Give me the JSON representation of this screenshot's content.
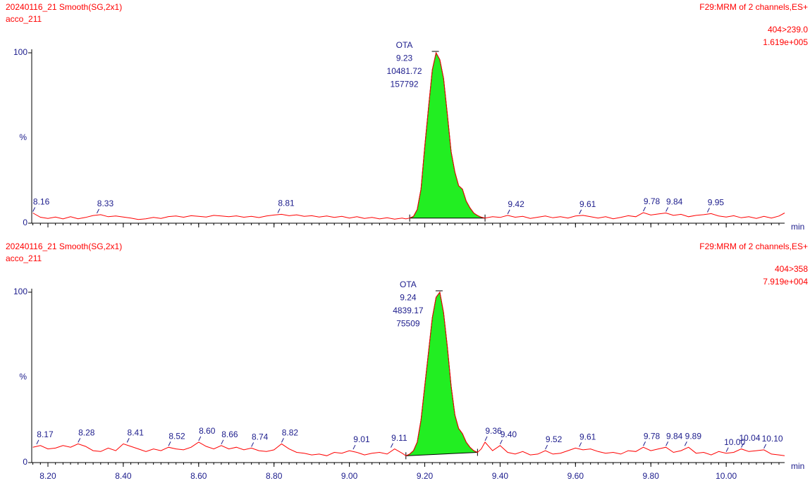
{
  "chart_data": [
    {
      "type": "line",
      "title": "20240116_21 Smooth(SG,2x1)",
      "subtitle": "acco_211",
      "function": "F29:MRM of 2 channels,ES+",
      "channel": "404>239.0",
      "intensity": "1.619e+005",
      "x_label": "min",
      "y_label": "%",
      "color": "#ff0000",
      "fill_color": "#22ee22",
      "xlim": [
        8.157,
        10.155
      ],
      "ylim": [
        0,
        100
      ],
      "yticks": [
        0,
        100
      ],
      "xticks": [
        8.2,
        8.4,
        8.6,
        8.8,
        9.0,
        9.2,
        9.4,
        9.6,
        9.8,
        10.0
      ],
      "tick_labels": false,
      "x": [
        8.16,
        8.18,
        8.2,
        8.22,
        8.24,
        8.26,
        8.28,
        8.3,
        8.32,
        8.34,
        8.36,
        8.38,
        8.4,
        8.42,
        8.44,
        8.46,
        8.48,
        8.5,
        8.52,
        8.54,
        8.56,
        8.58,
        8.6,
        8.62,
        8.64,
        8.66,
        8.68,
        8.7,
        8.72,
        8.74,
        8.76,
        8.78,
        8.8,
        8.82,
        8.84,
        8.86,
        8.88,
        8.9,
        8.92,
        8.94,
        8.96,
        8.98,
        9.0,
        9.02,
        9.04,
        9.06,
        9.08,
        9.1,
        9.12,
        9.14,
        9.15,
        9.16,
        9.17,
        9.18,
        9.19,
        9.2,
        9.21,
        9.22,
        9.23,
        9.24,
        9.25,
        9.26,
        9.27,
        9.28,
        9.29,
        9.3,
        9.31,
        9.32,
        9.33,
        9.34,
        9.35,
        9.36,
        9.38,
        9.4,
        9.42,
        9.44,
        9.46,
        9.48,
        9.5,
        9.52,
        9.54,
        9.56,
        9.58,
        9.6,
        9.62,
        9.64,
        9.66,
        9.68,
        9.7,
        9.72,
        9.74,
        9.76,
        9.78,
        9.8,
        9.82,
        9.84,
        9.86,
        9.88,
        9.9,
        9.92,
        9.94,
        9.96,
        9.98,
        10.0,
        10.02,
        10.04,
        10.06,
        10.08,
        10.1,
        10.12,
        10.14,
        10.155
      ],
      "values": [
        6,
        3.5,
        2.8,
        3.6,
        2.5,
        3.8,
        2.6,
        3.4,
        4.5,
        5,
        3.8,
        4.2,
        3.6,
        3.0,
        2.2,
        2.6,
        3.4,
        2.8,
        3.9,
        4.2,
        3.5,
        4.4,
        4.0,
        3.6,
        4.6,
        4.2,
        3.8,
        4.3,
        3.5,
        4.0,
        3.3,
        4.2,
        4.8,
        5.2,
        4.4,
        4.9,
        4.0,
        4.4,
        3.6,
        4.2,
        3.4,
        4.0,
        3.0,
        3.8,
        2.8,
        3.4,
        2.5,
        3.2,
        2.4,
        3.0,
        2.5,
        3,
        4,
        8,
        20,
        45,
        68,
        90,
        100,
        96,
        85,
        64,
        42,
        30,
        22,
        20,
        13,
        9,
        6,
        4.5,
        3.5,
        3,
        3.8,
        3.4,
        4.6,
        3.5,
        4.0,
        2.8,
        3.5,
        4.2,
        3.2,
        3.8,
        3.0,
        4.2,
        4.6,
        3.8,
        3.0,
        3.8,
        2.6,
        3.4,
        4.4,
        3.8,
        6.2,
        4.8,
        5.4,
        6.0,
        4.6,
        5.2,
        3.8,
        4.6,
        5.0,
        5.6,
        4.2,
        3.6,
        4.4,
        3.2,
        3.8,
        2.8,
        4.0,
        3.0,
        4.2,
        6
      ],
      "integration": {
        "start": 9.16,
        "end": 9.36
      },
      "peak": {
        "name": "OTA",
        "rt": 9.23,
        "area": 10481.72,
        "height": 157792
      },
      "peak_labels": [
        8.16,
        8.33,
        8.81,
        9.42,
        9.61,
        9.78,
        9.84,
        9.95
      ]
    },
    {
      "type": "line",
      "title": "20240116_21 Smooth(SG,2x1)",
      "subtitle": "acco_211",
      "function": "F29:MRM of 2 channels,ES+",
      "channel": "404>358",
      "intensity": "7.919e+004",
      "x_label": "min",
      "y_label": "%",
      "color": "#ff0000",
      "fill_color": "#22ee22",
      "xlim": [
        8.157,
        10.155
      ],
      "ylim": [
        0,
        100
      ],
      "yticks": [
        0,
        100
      ],
      "xticks": [
        {
          "value": 8.2,
          "label": "8.20"
        },
        {
          "value": 8.4,
          "label": "8.40"
        },
        {
          "value": 8.6,
          "label": "8.60"
        },
        {
          "value": 8.8,
          "label": "8.80"
        },
        {
          "value": 9.0,
          "label": "9.00"
        },
        {
          "value": 9.2,
          "label": "9.20"
        },
        {
          "value": 9.4,
          "label": "9.40"
        },
        {
          "value": 9.6,
          "label": "9.60"
        },
        {
          "value": 9.8,
          "label": "9.80"
        },
        {
          "value": 10.0,
          "label": "10.00"
        }
      ],
      "tick_labels": true,
      "x": [
        8.16,
        8.18,
        8.2,
        8.22,
        8.24,
        8.26,
        8.28,
        8.3,
        8.32,
        8.34,
        8.36,
        8.38,
        8.4,
        8.42,
        8.44,
        8.46,
        8.48,
        8.5,
        8.52,
        8.54,
        8.56,
        8.58,
        8.6,
        8.62,
        8.64,
        8.66,
        8.68,
        8.7,
        8.72,
        8.74,
        8.76,
        8.78,
        8.8,
        8.82,
        8.84,
        8.86,
        8.88,
        8.9,
        8.92,
        8.94,
        8.96,
        8.98,
        9.0,
        9.02,
        9.04,
        9.06,
        9.08,
        9.1,
        9.12,
        9.14,
        9.15,
        9.16,
        9.17,
        9.18,
        9.19,
        9.2,
        9.21,
        9.22,
        9.23,
        9.24,
        9.25,
        9.26,
        9.27,
        9.28,
        9.29,
        9.3,
        9.31,
        9.32,
        9.33,
        9.34,
        9.35,
        9.36,
        9.38,
        9.4,
        9.42,
        9.44,
        9.46,
        9.48,
        9.5,
        9.52,
        9.54,
        9.56,
        9.58,
        9.6,
        9.62,
        9.64,
        9.66,
        9.68,
        9.7,
        9.72,
        9.74,
        9.76,
        9.78,
        9.8,
        9.82,
        9.84,
        9.86,
        9.88,
        9.9,
        9.92,
        9.94,
        9.96,
        9.98,
        10.0,
        10.02,
        10.04,
        10.06,
        10.08,
        10.1,
        10.12,
        10.14,
        10.155
      ],
      "values": [
        9,
        10,
        8,
        8.5,
        10,
        9,
        11,
        9.5,
        7,
        6.5,
        8.5,
        7,
        11,
        9.5,
        8,
        6.5,
        8,
        7,
        9,
        8,
        7.5,
        9,
        12,
        9.5,
        8,
        10,
        8,
        9,
        7.5,
        8.5,
        7,
        6.5,
        7.5,
        11,
        8,
        6,
        5.5,
        4.5,
        5,
        4,
        6,
        5.5,
        7,
        6,
        4.5,
        5.5,
        6,
        5,
        8,
        5.5,
        4,
        5,
        7,
        12,
        25,
        45,
        65,
        85,
        97,
        100,
        88,
        68,
        45,
        28,
        20,
        17,
        12,
        9,
        7,
        6,
        8,
        12,
        7,
        10,
        6,
        5,
        6.5,
        4.5,
        5,
        7,
        5,
        5.5,
        7,
        8.5,
        7.5,
        8,
        6.5,
        5.5,
        6,
        5,
        7,
        6.5,
        9,
        7,
        8,
        9,
        6,
        7,
        9,
        5.5,
        6,
        4.5,
        6.5,
        5.5,
        6,
        8,
        6.5,
        7,
        7.5,
        5,
        4.5,
        4
      ],
      "integration": {
        "start": 9.15,
        "end": 9.34
      },
      "peak": {
        "name": "OTA",
        "rt": 9.24,
        "area": 4839.17,
        "height": 75509
      },
      "peak_labels": [
        8.17,
        8.28,
        8.41,
        8.52,
        {
          "value": 8.6,
          "label": "8.60"
        },
        8.66,
        8.74,
        8.82,
        9.01,
        9.11,
        9.36,
        {
          "value": 9.4,
          "label": "9.40"
        },
        9.52,
        9.61,
        9.78,
        9.84,
        9.89,
        {
          "value": 10.0,
          "label": "10.00"
        },
        10.04,
        {
          "value": 10.1,
          "label": "10.10"
        }
      ]
    }
  ]
}
